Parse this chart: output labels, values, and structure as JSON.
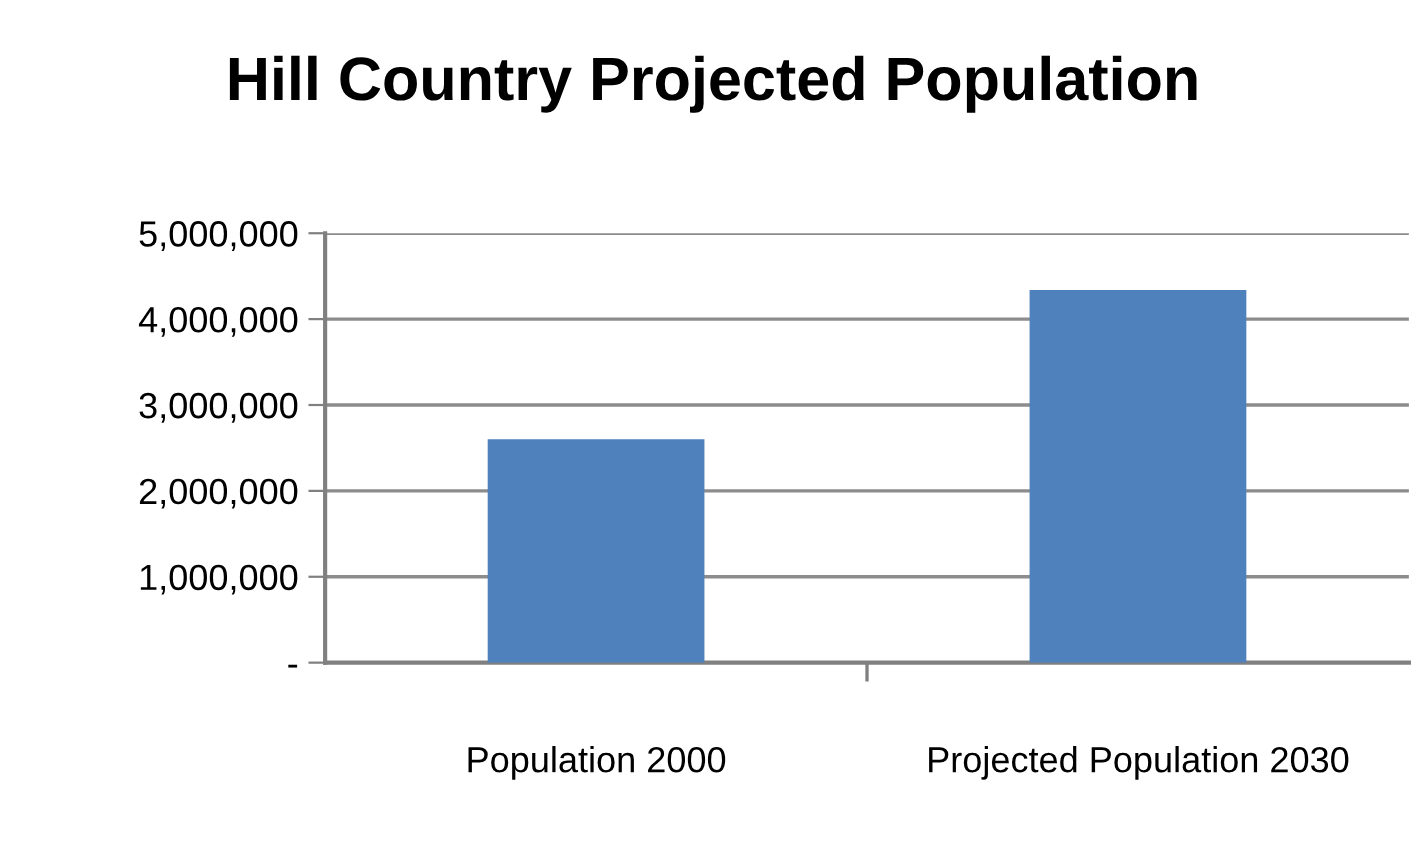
{
  "chart_data": {
    "type": "bar",
    "title": "Hill Country Projected Population",
    "categories": [
      "Population 2000",
      "Projected Population 2030"
    ],
    "values": [
      2600000,
      4340000
    ],
    "color": "#4f81bd",
    "ylim": [
      0,
      5000000
    ],
    "yticks": [
      {
        "value": 0,
        "label": "-"
      },
      {
        "value": 1000000,
        "label": "1,000,000"
      },
      {
        "value": 2000000,
        "label": "2,000,000"
      },
      {
        "value": 3000000,
        "label": "3,000,000"
      },
      {
        "value": 4000000,
        "label": "4,000,000"
      },
      {
        "value": 5000000,
        "label": "5,000,000"
      }
    ],
    "grid": "y"
  }
}
